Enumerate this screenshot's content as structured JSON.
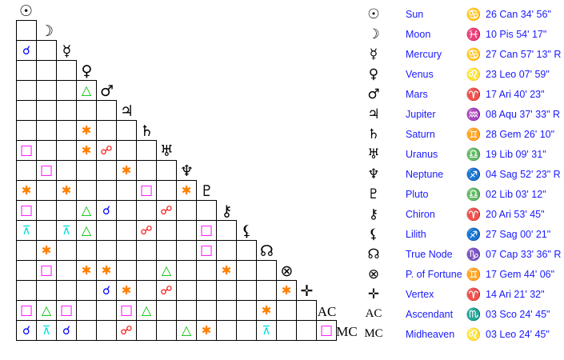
{
  "aspect_styles": {
    "conjunction": {
      "glyph": "☌",
      "color": "#0000ff"
    },
    "opposition": {
      "glyph": "☍",
      "color": "#ff0000"
    },
    "trine": {
      "glyph": "△",
      "color": "#00c000"
    },
    "square": {
      "glyph": "□",
      "color": "#ff00ff"
    },
    "sextile": {
      "glyph": "✱",
      "color": "#ff8000"
    },
    "quincunx": {
      "glyph": "⊼",
      "color": "#00e0e0"
    }
  },
  "planets": [
    {
      "glyph": "☉",
      "name": "Sun",
      "sign_glyph": "♋",
      "position": "26 Can 34' 56\""
    },
    {
      "glyph": "☽",
      "name": "Moon",
      "sign_glyph": "♓",
      "position": "10 Pis 54' 17\""
    },
    {
      "glyph": "☿",
      "name": "Mercury",
      "sign_glyph": "♋",
      "position": "27 Can 57' 13\" R"
    },
    {
      "glyph": "♀",
      "name": "Venus",
      "sign_glyph": "♌",
      "position": "23 Leo 07' 59\""
    },
    {
      "glyph": "♂",
      "name": "Mars",
      "sign_glyph": "♈",
      "position": "17 Ari 40' 23\""
    },
    {
      "glyph": "♃",
      "name": "Jupiter",
      "sign_glyph": "♒",
      "position": "08 Aqu 37' 33\" R"
    },
    {
      "glyph": "♄",
      "name": "Saturn",
      "sign_glyph": "♊",
      "position": "28 Gem 26' 10\""
    },
    {
      "glyph": "♅",
      "name": "Uranus",
      "sign_glyph": "♎",
      "position": "19 Lib 09' 31\""
    },
    {
      "glyph": "♆",
      "name": "Neptune",
      "sign_glyph": "♐",
      "position": "04 Sag 52' 23\" R"
    },
    {
      "glyph": "♇",
      "name": "Pluto",
      "sign_glyph": "♎",
      "position": "02 Lib 03' 12\""
    },
    {
      "glyph": "⚷",
      "name": "Chiron",
      "sign_glyph": "♈",
      "position": "20 Ari 53' 45\""
    },
    {
      "glyph": "⚸",
      "name": "Lilith",
      "sign_glyph": "♐",
      "position": "27 Sag 00' 21\""
    },
    {
      "glyph": "☊",
      "name": "True Node",
      "sign_glyph": "♑",
      "position": "07 Cap 33' 36\" R"
    },
    {
      "glyph": "⊗",
      "name": "P. of Fortune",
      "sign_glyph": "♊",
      "position": "17 Gem 44' 06\""
    },
    {
      "glyph": "✛",
      "name": "Vertex",
      "sign_glyph": "♈",
      "position": "14 Ari 21' 32\""
    },
    {
      "glyph": "AC",
      "name": "Ascendant",
      "sign_glyph": "♏",
      "position": "03 Sco 24' 45\""
    },
    {
      "glyph": "MC",
      "name": "Midheaven",
      "sign_glyph": "♌",
      "position": "03 Leo 24' 45\""
    }
  ],
  "aspects": [
    {
      "row": 2,
      "col": 0,
      "aspect": "conjunction"
    },
    {
      "row": 4,
      "col": 3,
      "aspect": "trine"
    },
    {
      "row": 6,
      "col": 3,
      "aspect": "sextile"
    },
    {
      "row": 7,
      "col": 0,
      "aspect": "square"
    },
    {
      "row": 7,
      "col": 3,
      "aspect": "sextile"
    },
    {
      "row": 7,
      "col": 4,
      "aspect": "opposition"
    },
    {
      "row": 8,
      "col": 1,
      "aspect": "square"
    },
    {
      "row": 8,
      "col": 5,
      "aspect": "sextile"
    },
    {
      "row": 9,
      "col": 0,
      "aspect": "sextile"
    },
    {
      "row": 9,
      "col": 2,
      "aspect": "sextile"
    },
    {
      "row": 9,
      "col": 6,
      "aspect": "square"
    },
    {
      "row": 9,
      "col": 8,
      "aspect": "sextile"
    },
    {
      "row": 10,
      "col": 0,
      "aspect": "square"
    },
    {
      "row": 10,
      "col": 3,
      "aspect": "trine"
    },
    {
      "row": 10,
      "col": 4,
      "aspect": "conjunction"
    },
    {
      "row": 10,
      "col": 7,
      "aspect": "opposition"
    },
    {
      "row": 11,
      "col": 0,
      "aspect": "quincunx"
    },
    {
      "row": 11,
      "col": 2,
      "aspect": "quincunx"
    },
    {
      "row": 11,
      "col": 3,
      "aspect": "trine"
    },
    {
      "row": 11,
      "col": 6,
      "aspect": "opposition"
    },
    {
      "row": 11,
      "col": 9,
      "aspect": "square"
    },
    {
      "row": 12,
      "col": 1,
      "aspect": "sextile"
    },
    {
      "row": 12,
      "col": 9,
      "aspect": "square"
    },
    {
      "row": 13,
      "col": 1,
      "aspect": "square"
    },
    {
      "row": 13,
      "col": 3,
      "aspect": "sextile"
    },
    {
      "row": 13,
      "col": 4,
      "aspect": "sextile"
    },
    {
      "row": 13,
      "col": 7,
      "aspect": "trine"
    },
    {
      "row": 13,
      "col": 10,
      "aspect": "sextile"
    },
    {
      "row": 14,
      "col": 4,
      "aspect": "conjunction"
    },
    {
      "row": 14,
      "col": 5,
      "aspect": "sextile"
    },
    {
      "row": 14,
      "col": 7,
      "aspect": "opposition"
    },
    {
      "row": 14,
      "col": 13,
      "aspect": "sextile"
    },
    {
      "row": 15,
      "col": 0,
      "aspect": "square"
    },
    {
      "row": 15,
      "col": 1,
      "aspect": "trine"
    },
    {
      "row": 15,
      "col": 2,
      "aspect": "square"
    },
    {
      "row": 15,
      "col": 5,
      "aspect": "square"
    },
    {
      "row": 15,
      "col": 6,
      "aspect": "trine"
    },
    {
      "row": 15,
      "col": 12,
      "aspect": "sextile"
    },
    {
      "row": 16,
      "col": 0,
      "aspect": "conjunction"
    },
    {
      "row": 16,
      "col": 1,
      "aspect": "quincunx"
    },
    {
      "row": 16,
      "col": 2,
      "aspect": "conjunction"
    },
    {
      "row": 16,
      "col": 5,
      "aspect": "opposition"
    },
    {
      "row": 16,
      "col": 8,
      "aspect": "trine"
    },
    {
      "row": 16,
      "col": 9,
      "aspect": "sextile"
    },
    {
      "row": 16,
      "col": 12,
      "aspect": "quincunx"
    },
    {
      "row": 16,
      "col": 15,
      "aspect": "square"
    }
  ]
}
